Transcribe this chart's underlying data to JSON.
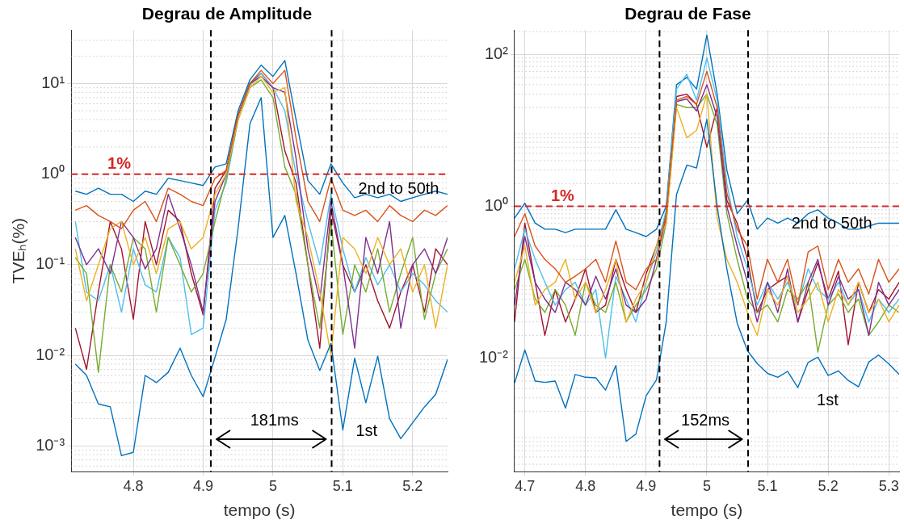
{
  "chart_data": [
    {
      "type": "line",
      "title": "Degrau de Amplitude",
      "xlabel": "tempo (s)",
      "ylabel": "TVEₕ(%)",
      "log": "y",
      "grid": true,
      "xlim": [
        4.711,
        5.25
      ],
      "xticks": [
        4.8,
        4.9,
        5,
        5.1,
        5.2
      ],
      "ylim": [
        0.00052,
        39
      ],
      "yticks": [
        {
          "value": 0.001,
          "label": "10⁻³"
        },
        {
          "value": 0.01,
          "label": "10⁻²"
        },
        {
          "value": 0.1,
          "label": "10⁻¹"
        },
        {
          "value": 1,
          "label": "10⁰"
        },
        {
          "value": 10,
          "label": "10¹"
        }
      ],
      "x": [
        4.717,
        4.733,
        4.75,
        4.767,
        4.783,
        4.8,
        4.817,
        4.833,
        4.85,
        4.867,
        4.883,
        4.9,
        4.917,
        4.933,
        4.95,
        4.967,
        4.983,
        5,
        5.017,
        5.033,
        5.05,
        5.067,
        5.083,
        5.1,
        5.117,
        5.133,
        5.15,
        5.167,
        5.183,
        5.2,
        5.217,
        5.233,
        5.25
      ],
      "series": [
        {
          "color": "#0072bd",
          "values": [
            0.008,
            0.006,
            0.0029,
            0.0027,
            0.00078,
            0.00085,
            0.006,
            0.005,
            0.0065,
            0.012,
            0.006,
            0.0035,
            0.0095,
            0.025,
            0.25,
            3.6,
            7,
            0.2,
            0.35,
            0.08,
            0.0147,
            0.0068,
            0.0136,
            0.0015,
            0.0093,
            0.003,
            0.0098,
            0.002,
            0.0012,
            0.0018,
            0.0027,
            0.0037,
            0.009
          ]
        },
        {
          "color": "#d95319",
          "values": [
            0.4,
            0.45,
            0.35,
            0.3,
            0.25,
            0.4,
            0.5,
            0.3,
            0.7,
            0.6,
            0.5,
            0.45,
            0.9,
            1.1,
            4.5,
            10,
            14,
            10,
            14,
            2.5,
            0.5,
            0.3,
            0.9,
            0.4,
            0.35,
            0.4,
            0.3,
            0.45,
            0.35,
            0.3,
            0.4,
            0.35,
            0.45
          ]
        },
        {
          "color": "#edb120",
          "values": [
            0.15,
            0.04,
            0.1,
            0.25,
            0.3,
            0.1,
            0.2,
            0.08,
            0.25,
            0.3,
            0.15,
            0.2,
            0.6,
            1,
            4,
            9,
            12,
            8,
            9,
            0.5,
            0.2,
            0.05,
            0.01,
            0.2,
            0.15,
            0.08,
            0.2,
            0.1,
            0.15,
            0.05,
            0.1,
            0.02,
            0.1
          ]
        },
        {
          "color": "#7e2f8e",
          "values": [
            0.2,
            0.1,
            0.15,
            0.08,
            0.3,
            0.2,
            0.09,
            0.15,
            0.6,
            0.25,
            0.1,
            0.03,
            0.5,
            1,
            4.5,
            10,
            12,
            9,
            8,
            1.5,
            0.15,
            0.04,
            0.5,
            0.1,
            0.012,
            0.2,
            0.08,
            0.3,
            0.02,
            0.1,
            0.15,
            0.08,
            0.2
          ]
        },
        {
          "color": "#77ac30",
          "values": [
            0.12,
            0.08,
            0.0065,
            0.1,
            0.05,
            0.2,
            0.15,
            0.03,
            0.2,
            0.1,
            0.05,
            0.08,
            0.3,
            0.9,
            4,
            9,
            11,
            7,
            1.2,
            0.6,
            0.1,
            0.02,
            0.3,
            0.017,
            0.1,
            0.05,
            0.15,
            0.03,
            0.08,
            0.2,
            0.025,
            0.08,
            0.15
          ]
        },
        {
          "color": "#4dbeee",
          "values": [
            0.3,
            0.05,
            0.04,
            0.1,
            0.03,
            0.15,
            0.06,
            0.05,
            0.2,
            0.12,
            0.017,
            0.02,
            0.4,
            0.8,
            4,
            9.5,
            13,
            9,
            5,
            1,
            0.3,
            0.1,
            0.6,
            0.15,
            0.05,
            0.12,
            0.06,
            0.1,
            0.05,
            0.08,
            0.06,
            0.04,
            0.03
          ]
        },
        {
          "color": "#a2142f",
          "values": [
            0.02,
            0.007,
            0.05,
            0.3,
            0.15,
            0.025,
            0.3,
            0.1,
            0.4,
            0.3,
            0.08,
            0.028,
            0.7,
            1.1,
            4.5,
            10,
            13,
            9,
            1.8,
            0.8,
            0.1,
            0.012,
            0.4,
            0.1,
            0.05,
            0.1,
            0.04,
            0.02,
            0.05,
            0.1,
            0.03,
            0.15,
            0.1
          ]
        },
        {
          "color": "#0072bd",
          "values": [
            0.65,
            0.6,
            0.7,
            0.6,
            0.6,
            0.5,
            0.65,
            0.6,
            0.9,
            0.85,
            0.8,
            0.75,
            1.2,
            1.3,
            5,
            11,
            16,
            12,
            18,
            4,
            0.85,
            0.6,
            1.3,
            0.8,
            0.55,
            0.6,
            0.55,
            0.6,
            0.5,
            0.55,
            0.6,
            0.65,
            0.6
          ]
        }
      ],
      "ref_lines": [
        {
          "axis": "y",
          "value": 1,
          "label": "1%",
          "color": "#d62728",
          "line_style": "dashed"
        },
        {
          "axis": "x",
          "value": 4.911,
          "color": "#000000",
          "line_style": "dashed"
        },
        {
          "axis": "x",
          "value": 5.084,
          "color": "#000000",
          "line_style": "dashed"
        }
      ],
      "annotations": [
        "181ms",
        "2nd to 50th",
        "1st"
      ]
    },
    {
      "type": "line",
      "title": "Degrau de Fase",
      "xlabel": "tempo (s)",
      "log": "y",
      "grid": true,
      "xlim": [
        4.683,
        5.317
      ],
      "xticks": [
        4.7,
        4.8,
        4.9,
        5,
        5.1,
        5.2,
        5.3
      ],
      "ylim": [
        0.00032,
        210
      ],
      "yticks": [
        {
          "value": 0.01,
          "label": "10⁻²"
        },
        {
          "value": 1,
          "label": "10⁰"
        },
        {
          "value": 100,
          "label": "10²"
        }
      ],
      "x": [
        4.683,
        4.7,
        4.717,
        4.733,
        4.75,
        4.767,
        4.783,
        4.8,
        4.817,
        4.833,
        4.85,
        4.867,
        4.883,
        4.9,
        4.917,
        4.933,
        4.95,
        4.967,
        4.983,
        5,
        5.017,
        5.033,
        5.05,
        5.067,
        5.083,
        5.1,
        5.117,
        5.133,
        5.15,
        5.167,
        5.183,
        5.2,
        5.217,
        5.233,
        5.25,
        5.267,
        5.283,
        5.3,
        5.317
      ],
      "series": [
        {
          "color": "#0072bd",
          "values": [
            0.0047,
            0.0128,
            0.005,
            0.0048,
            0.005,
            0.0022,
            0.0061,
            0.0056,
            0.0055,
            0.0038,
            0.008,
            0.0008,
            0.001,
            0.0032,
            0.0052,
            0.03,
            1.43,
            3.5,
            3.2,
            14,
            1,
            0.15,
            0.029,
            0.0125,
            0.0085,
            0.0063,
            0.0056,
            0.0067,
            0.0041,
            0.0088,
            0.0103,
            0.0059,
            0.0068,
            0.0051,
            0.0042,
            0.0089,
            0.011,
            0.0084,
            0.0061
          ]
        },
        {
          "color": "#d95319",
          "values": [
            0.4,
            0.8,
            0.3,
            0.2,
            0.15,
            0.1,
            0.12,
            0.15,
            0.2,
            0.1,
            0.35,
            0.1,
            0.08,
            0.15,
            0.2,
            0.8,
            25,
            28,
            22,
            60,
            20,
            1.5,
            0.5,
            0.3,
            0.06,
            0.2,
            0.1,
            0.2,
            0.05,
            0.25,
            0.3,
            0.08,
            0.2,
            0.1,
            0.15,
            0.07,
            0.2,
            0.1,
            0.15
          ]
        },
        {
          "color": "#edb120",
          "values": [
            0.1,
            0.3,
            0.05,
            0.08,
            0.1,
            0.2,
            0.06,
            0.1,
            0.04,
            0.08,
            0.2,
            0.03,
            0.06,
            0.1,
            0.3,
            0.6,
            20,
            8,
            10,
            30,
            0.7,
            0.2,
            0.1,
            0.04,
            0.02,
            0.08,
            0.05,
            0.12,
            0.04,
            0.06,
            0.1,
            0.03,
            0.08,
            0.05,
            0.1,
            0.04,
            0.06,
            0.03,
            0.05
          ]
        },
        {
          "color": "#7e2f8e",
          "values": [
            0.05,
            0.4,
            0.1,
            0.06,
            0.04,
            0.1,
            0.08,
            0.05,
            0.12,
            0.06,
            0.15,
            0.05,
            0.04,
            0.06,
            0.2,
            0.7,
            24,
            26,
            18,
            40,
            15,
            1,
            0.3,
            0.1,
            0.03,
            0.1,
            0.04,
            0.15,
            0.03,
            0.1,
            0.2,
            0.05,
            0.12,
            0.06,
            0.08,
            0.02,
            0.1,
            0.05,
            0.08
          ]
        },
        {
          "color": "#77ac30",
          "values": [
            0.08,
            0.2,
            0.06,
            0.04,
            0.08,
            0.05,
            0.02,
            0.1,
            0.05,
            0.04,
            0.1,
            0.03,
            0.05,
            0.08,
            0.15,
            0.6,
            22,
            20,
            20,
            30,
            12,
            0.8,
            0.2,
            0.06,
            0.04,
            0.05,
            0.03,
            0.08,
            0.06,
            0.1,
            0.012,
            0.05,
            0.07,
            0.04,
            0.06,
            0.02,
            0.03,
            0.05,
            0.04
          ]
        },
        {
          "color": "#4dbeee",
          "values": [
            0.15,
            0.5,
            0.2,
            0.1,
            0.05,
            0.08,
            0.1,
            0.05,
            0.08,
            0.01,
            0.12,
            0.06,
            0.03,
            0.1,
            0.25,
            0.9,
            35,
            55,
            25,
            90,
            25,
            2,
            0.4,
            0.15,
            0.05,
            0.1,
            0.06,
            0.1,
            0.05,
            0.15,
            0.08,
            0.06,
            0.1,
            0.05,
            0.08,
            0.03,
            0.06,
            0.04,
            0.06
          ]
        },
        {
          "color": "#a2142f",
          "values": [
            0.03,
            0.6,
            0.1,
            0.02,
            0.08,
            0.03,
            0.06,
            0.15,
            0.04,
            0.05,
            0.2,
            0.08,
            0.04,
            0.13,
            0.3,
            0.8,
            28,
            30,
            22,
            6,
            20,
            1.2,
            0.6,
            0.2,
            0.04,
            0.08,
            0.1,
            0.12,
            0.03,
            0.08,
            0.18,
            0.06,
            0.14,
            0.015,
            0.1,
            0.04,
            0.08,
            0.06,
            0.1
          ]
        },
        {
          "color": "#0072bd",
          "values": [
            0.7,
            1.1,
            0.6,
            0.5,
            0.5,
            0.45,
            0.5,
            0.5,
            0.5,
            0.5,
            0.9,
            0.5,
            0.45,
            0.4,
            0.5,
            1,
            40,
            50,
            35,
            180,
            30,
            3,
            0.8,
            1.2,
            0.5,
            0.7,
            0.6,
            0.7,
            0.6,
            0.8,
            0.9,
            0.7,
            0.6,
            0.5,
            0.5,
            0.55,
            0.6,
            0.6,
            0.6
          ]
        }
      ],
      "ref_lines": [
        {
          "axis": "y",
          "value": 1,
          "label": "1%",
          "color": "#d62728",
          "line_style": "dashed"
        },
        {
          "axis": "x",
          "value": 4.922,
          "color": "#000000",
          "line_style": "dashed"
        },
        {
          "axis": "x",
          "value": 5.068,
          "color": "#000000",
          "line_style": "dashed"
        }
      ],
      "annotations": [
        "152ms",
        "2nd to 50th",
        "1st"
      ]
    }
  ]
}
